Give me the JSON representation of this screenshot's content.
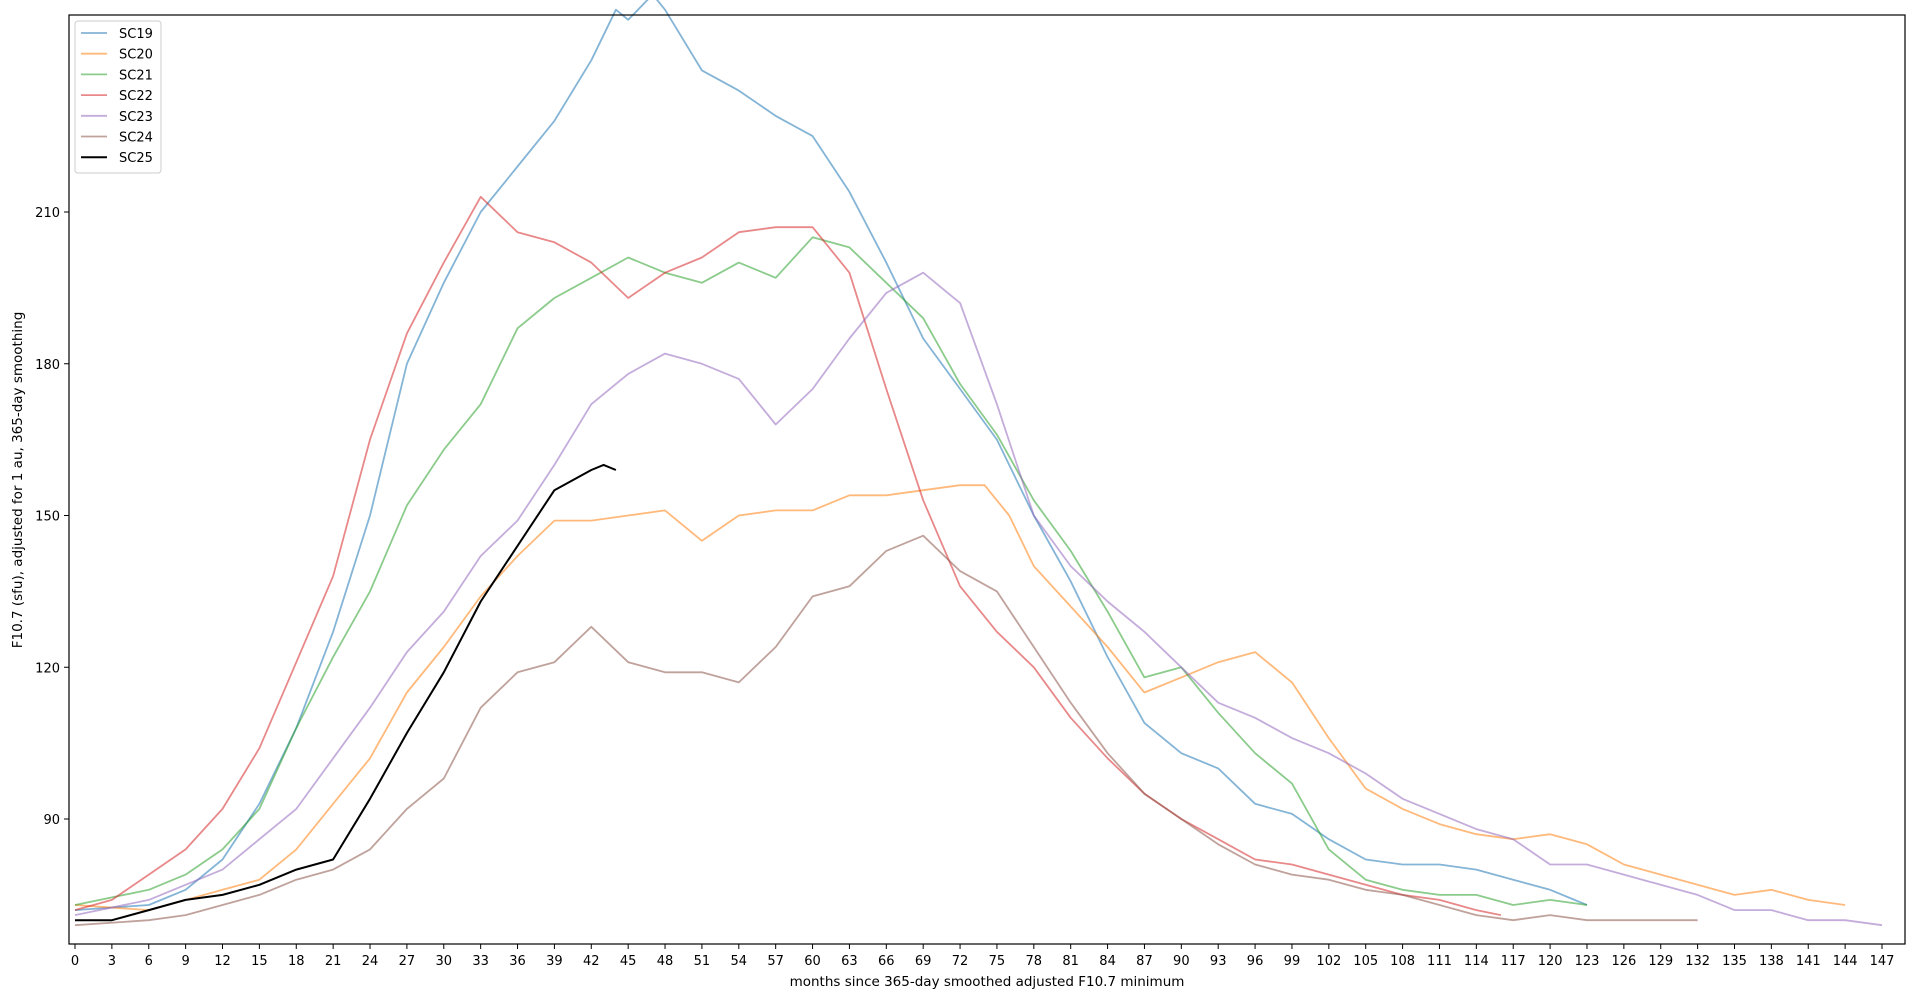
{
  "chart_data": {
    "type": "line",
    "title": "",
    "xlabel": "months since 365-day smoothed adjusted F10.7 minimum",
    "ylabel": "F10.7 (sfu), adjusted for 1 au, 365-day smoothing",
    "xlim": [
      -1,
      149
    ],
    "ylim": [
      65,
      252
    ],
    "xticks": [
      0,
      3,
      6,
      9,
      12,
      15,
      18,
      21,
      24,
      27,
      30,
      33,
      36,
      39,
      42,
      45,
      48,
      51,
      54,
      57,
      60,
      63,
      66,
      69,
      72,
      75,
      78,
      81,
      84,
      87,
      90,
      93,
      96,
      99,
      102,
      105,
      108,
      111,
      114,
      117,
      120,
      123,
      126,
      129,
      132,
      135,
      138,
      141,
      144,
      147
    ],
    "yticks": [
      90,
      120,
      150,
      180,
      210
    ],
    "grid": false,
    "legend_position": "upper left",
    "series": [
      {
        "name": "SC19",
        "color": "#1f77b4",
        "opacity": 0.55,
        "x": [
          0,
          6,
          9,
          12,
          15,
          18,
          21,
          24,
          27,
          30,
          33,
          36,
          39,
          42,
          44,
          45,
          47,
          48,
          51,
          54,
          57,
          60,
          63,
          66,
          69,
          72,
          75,
          78,
          81,
          84,
          87,
          90,
          93,
          96,
          99,
          102,
          105,
          108,
          111,
          114,
          117,
          120,
          123
        ],
        "values": [
          72,
          73,
          76,
          82,
          93,
          108,
          127,
          150,
          180,
          196,
          210,
          219,
          228,
          240,
          250,
          248,
          253,
          250,
          238,
          234,
          229,
          225,
          214,
          200,
          185,
          175,
          165,
          150,
          137,
          122,
          109,
          103,
          100,
          93,
          91,
          86,
          82,
          81,
          81,
          80,
          78,
          76,
          73
        ]
      },
      {
        "name": "SC20",
        "color": "#ff7f0e",
        "opacity": 0.55,
        "x": [
          0,
          6,
          12,
          15,
          18,
          21,
          24,
          27,
          30,
          33,
          36,
          39,
          42,
          45,
          48,
          51,
          54,
          57,
          60,
          63,
          66,
          69,
          72,
          74,
          76,
          78,
          81,
          84,
          87,
          90,
          93,
          96,
          99,
          102,
          105,
          108,
          111,
          114,
          117,
          120,
          123,
          126,
          129,
          132,
          135,
          138,
          141,
          144
        ],
        "values": [
          73,
          72,
          76,
          78,
          84,
          93,
          102,
          115,
          124,
          134,
          142,
          149,
          149,
          150,
          151,
          145,
          150,
          151,
          151,
          154,
          154,
          155,
          156,
          156,
          150,
          140,
          132,
          124,
          115,
          118,
          121,
          123,
          117,
          106,
          96,
          92,
          89,
          87,
          86,
          87,
          85,
          81,
          79,
          77,
          75,
          76,
          74,
          73
        ]
      },
      {
        "name": "SC21",
        "color": "#2ca02c",
        "opacity": 0.55,
        "x": [
          0,
          6,
          9,
          12,
          15,
          18,
          21,
          24,
          27,
          30,
          33,
          36,
          39,
          42,
          45,
          48,
          51,
          54,
          57,
          60,
          63,
          66,
          69,
          72,
          75,
          78,
          81,
          84,
          87,
          90,
          93,
          96,
          99,
          102,
          105,
          108,
          111,
          114,
          117,
          120,
          123
        ],
        "values": [
          73,
          76,
          79,
          84,
          92,
          108,
          122,
          135,
          152,
          163,
          172,
          187,
          193,
          197,
          201,
          198,
          196,
          200,
          197,
          205,
          203,
          196,
          189,
          176,
          166,
          153,
          143,
          131,
          118,
          120,
          111,
          103,
          97,
          84,
          78,
          76,
          75,
          75,
          73,
          74,
          73
        ]
      },
      {
        "name": "SC22",
        "color": "#d62728",
        "opacity": 0.55,
        "x": [
          0,
          3,
          6,
          9,
          12,
          15,
          18,
          21,
          24,
          27,
          30,
          33,
          36,
          39,
          42,
          45,
          48,
          51,
          54,
          57,
          60,
          63,
          66,
          69,
          72,
          75,
          78,
          81,
          84,
          87,
          90,
          93,
          96,
          99,
          102,
          105,
          108,
          111,
          114,
          116
        ],
        "values": [
          72,
          74,
          79,
          84,
          92,
          104,
          121,
          138,
          165,
          186,
          200,
          213,
          206,
          204,
          200,
          193,
          198,
          201,
          206,
          207,
          207,
          198,
          175,
          153,
          136,
          127,
          120,
          110,
          102,
          95,
          90,
          86,
          82,
          81,
          79,
          77,
          75,
          74,
          72,
          71
        ]
      },
      {
        "name": "SC23",
        "color": "#9467bd",
        "opacity": 0.55,
        "x": [
          0,
          6,
          9,
          12,
          15,
          18,
          21,
          24,
          27,
          30,
          33,
          36,
          39,
          42,
          45,
          48,
          51,
          54,
          57,
          60,
          63,
          66,
          69,
          72,
          75,
          78,
          81,
          84,
          87,
          90,
          93,
          96,
          99,
          102,
          105,
          108,
          111,
          114,
          117,
          120,
          123,
          126,
          129,
          132,
          135,
          138,
          141,
          144,
          147
        ],
        "values": [
          71,
          74,
          77,
          80,
          86,
          92,
          102,
          112,
          123,
          131,
          142,
          149,
          160,
          172,
          178,
          182,
          180,
          177,
          168,
          175,
          185,
          194,
          198,
          192,
          172,
          150,
          140,
          133,
          127,
          120,
          113,
          110,
          106,
          103,
          99,
          94,
          91,
          88,
          86,
          81,
          81,
          79,
          77,
          75,
          72,
          72,
          70,
          70,
          69
        ]
      },
      {
        "name": "SC24",
        "color": "#8c564b",
        "opacity": 0.55,
        "x": [
          0,
          6,
          9,
          12,
          15,
          18,
          21,
          24,
          27,
          30,
          33,
          36,
          39,
          42,
          45,
          48,
          51,
          54,
          57,
          60,
          63,
          66,
          69,
          72,
          75,
          78,
          81,
          84,
          87,
          90,
          93,
          96,
          99,
          102,
          105,
          108,
          111,
          114,
          117,
          120,
          123,
          126,
          129,
          132
        ],
        "values": [
          69,
          70,
          71,
          73,
          75,
          78,
          80,
          84,
          92,
          98,
          112,
          119,
          121,
          128,
          121,
          119,
          119,
          117,
          124,
          134,
          136,
          143,
          146,
          139,
          135,
          124,
          113,
          103,
          95,
          90,
          85,
          81,
          79,
          78,
          76,
          75,
          73,
          71,
          70,
          71,
          70,
          70,
          70,
          70
        ]
      },
      {
        "name": "SC25",
        "color": "#000000",
        "opacity": 1.0,
        "x": [
          0,
          3,
          6,
          9,
          12,
          15,
          18,
          21,
          24,
          27,
          30,
          33,
          36,
          39,
          42,
          43,
          44
        ],
        "values": [
          70,
          70,
          72,
          74,
          75,
          77,
          80,
          82,
          94,
          107,
          119,
          133,
          144,
          155,
          159,
          160,
          159
        ]
      }
    ]
  },
  "axes": {
    "xlabel": "months since 365-day smoothed adjusted F10.7 minimum",
    "ylabel": "F10.7 (sfu), adjusted for 1 au, 365-day smoothing"
  },
  "legend": {
    "items": [
      {
        "label": "SC19",
        "color": "#1f77b4"
      },
      {
        "label": "SC20",
        "color": "#ff7f0e"
      },
      {
        "label": "SC21",
        "color": "#2ca02c"
      },
      {
        "label": "SC22",
        "color": "#d62728"
      },
      {
        "label": "SC23",
        "color": "#9467bd"
      },
      {
        "label": "SC24",
        "color": "#8c564b"
      },
      {
        "label": "SC25",
        "color": "#000000"
      }
    ]
  }
}
